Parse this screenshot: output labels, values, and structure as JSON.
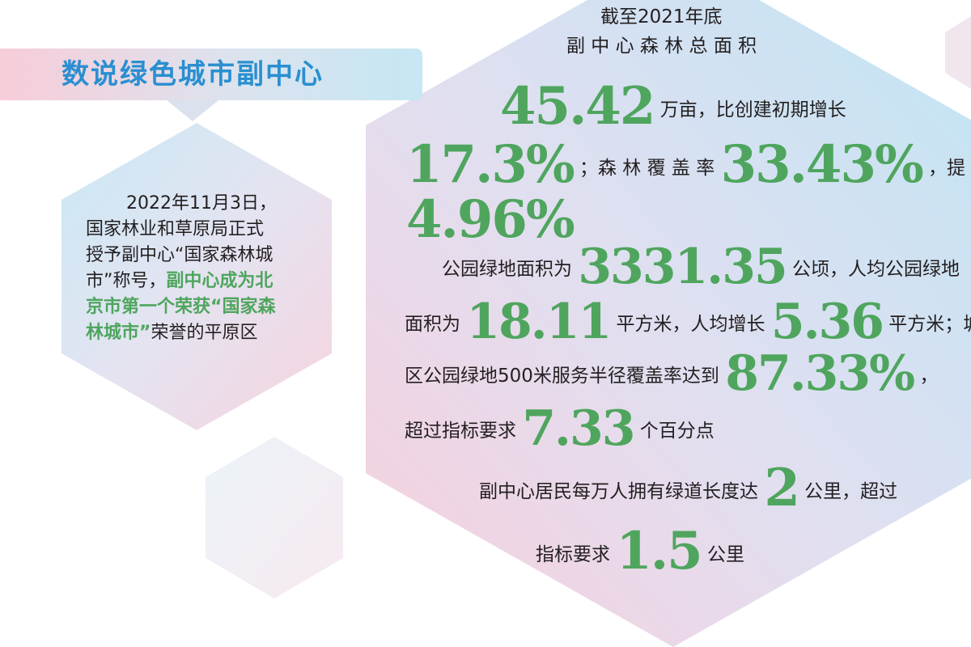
{
  "banner": {
    "title": "数说绿色城市副中心"
  },
  "left_hex": {
    "line1": "2022年11月3日，",
    "line2": "国家林业和草原局正式",
    "line3": "授予副中心“国家森林城",
    "line4_a": "市”称号，",
    "line4_b": "副中心成为北",
    "line5": "京市第一个荣获“国家森",
    "line6_a": "林城市”",
    "line6_b": "荣誉的平原区"
  },
  "main_hex": {
    "l1": "截至2021年底",
    "l2": "副 中 心 森 林 总 面 积",
    "forest_area": "45.42",
    "l3_text": "万亩，比创建初期增长",
    "growth": "17.3%",
    "l4_text_a": "；森 林 覆 盖 率",
    "coverage": "33.43%",
    "l4_text_b": "，提 高",
    "coverage_up": "4.96%",
    "l6_text_a": "公园绿地面积为",
    "park_area": "3331.35",
    "l6_text_b": "公顷，人均公园绿地",
    "l7_text_a": "面积为",
    "per_capita": "18.11",
    "l7_text_b": "平方米，人均增长",
    "per_capita_up": "5.36",
    "l7_text_c": "平方米；城",
    "l8_text_a": "区公园绿地500米服务半径覆盖率达到",
    "service_coverage": "87.33%",
    "l8_text_b": "，",
    "l9_text_a": "超过指标要求",
    "exceed_points": "7.33",
    "l9_text_b": "个百分点",
    "l10_text_a": "副中心居民每万人拥有绿道长度达",
    "greenway": "2",
    "l10_text_b": "公里，超过",
    "l11_text_a": "指标要求",
    "greenway_exceed": "1.5",
    "l11_text_b": "公里"
  },
  "colors": {
    "green": "#4fa55e",
    "blue": "#2a8fd0",
    "pink": "#f7cdd9",
    "light_blue": "#c5e7f3"
  }
}
